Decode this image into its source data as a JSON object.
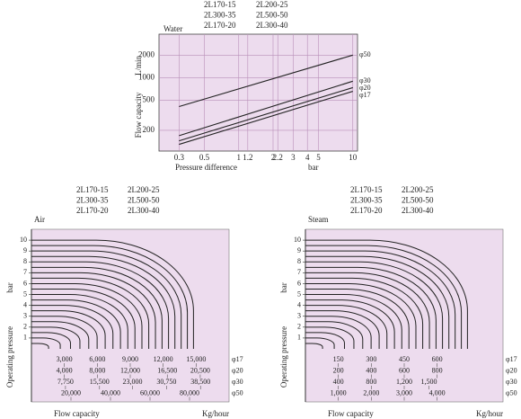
{
  "chart_data": [
    {
      "type": "line",
      "title": "Water",
      "models": [
        "2L170-15",
        "2L200-25",
        "2L300-35",
        "2L500-50",
        "2L170-20",
        "2L300-40"
      ],
      "x_label": "Pressure difference",
      "x_unit": "bar",
      "y_label": "Flow capacity",
      "y_unit": "L/min",
      "xlog": true,
      "ylog": true,
      "grid": true,
      "background": "#eddcee",
      "xlim": [
        0.2,
        11
      ],
      "ylim": [
        106,
        3800
      ],
      "xticks": [
        0.3,
        0.5,
        1,
        1.2,
        2,
        2.2,
        3,
        4,
        5,
        10
      ],
      "yticks": [
        200,
        500,
        1000,
        2000
      ],
      "series": [
        {
          "name": "φ50",
          "color": "#222222",
          "x": [
            0.3,
            10
          ],
          "values": [
            414,
            2000
          ]
        },
        {
          "name": "φ30",
          "color": "#222222",
          "x": [
            0.3,
            10
          ],
          "values": [
            170,
            900
          ]
        },
        {
          "name": "φ20",
          "color": "#222222",
          "x": [
            0.3,
            10
          ],
          "values": [
            145,
            740
          ]
        },
        {
          "name": "φ17",
          "color": "#222222",
          "x": [
            0.3,
            10
          ],
          "values": [
            130,
            660
          ]
        }
      ]
    },
    {
      "type": "pressure-curves",
      "title": "Air",
      "models": [
        "2L170-15",
        "2L200-25",
        "2L300-35",
        "2L500-50",
        "2L170-20",
        "2L300-40"
      ],
      "x_label": "Flow capacity",
      "x_unit": "Kg/hour",
      "y_label": "Operating pressure",
      "y_unit": "bar",
      "background": "#eddcee",
      "color": "#222222",
      "ylim": [
        0,
        11
      ],
      "yticks": [
        1,
        2,
        3,
        4,
        5,
        6,
        7,
        8,
        9,
        10
      ],
      "curves": [
        0.5,
        1,
        1.5,
        2,
        2.5,
        3,
        3.5,
        4,
        4.5,
        5,
        5.5,
        6,
        6.5,
        7,
        7.5,
        8,
        8.5,
        9,
        9.5,
        10
      ],
      "scales": [
        {
          "name": "φ17",
          "xlim": [
            0,
            18000
          ],
          "ticks": [
            {
              "value": 3000,
              "label": "3,000"
            },
            {
              "value": 6000,
              "label": "6,000"
            },
            {
              "value": 9000,
              "label": "9,000"
            },
            {
              "value": 12000,
              "label": "12,000"
            },
            {
              "value": 15000,
              "label": "15,000"
            }
          ]
        },
        {
          "name": "φ20",
          "xlim": [
            0,
            24000
          ],
          "ticks": [
            {
              "value": 4000,
              "label": "4,000"
            },
            {
              "value": 8000,
              "label": "8,000"
            },
            {
              "value": 12000,
              "label": "12,000"
            },
            {
              "value": 16500,
              "label": "16,500"
            },
            {
              "value": 20500,
              "label": "20,500"
            }
          ]
        },
        {
          "name": "φ30",
          "xlim": [
            0,
            45000
          ],
          "ticks": [
            {
              "value": 7750,
              "label": "7,750"
            },
            {
              "value": 15500,
              "label": "15,500"
            },
            {
              "value": 23000,
              "label": "23,000"
            },
            {
              "value": 30750,
              "label": "30,750"
            },
            {
              "value": 38500,
              "label": "38,500"
            }
          ]
        },
        {
          "name": "φ50",
          "xlim": [
            0,
            100000
          ],
          "ticks": [
            {
              "value": 20000,
              "label": "20,000"
            },
            {
              "value": 40000,
              "label": "40,000"
            },
            {
              "value": 60000,
              "label": "60,000"
            },
            {
              "value": 80000,
              "label": "80,000"
            }
          ]
        }
      ]
    },
    {
      "type": "pressure-curves",
      "title": "Steam",
      "models": [
        "2L170-15",
        "2L200-25",
        "2L300-35",
        "2L500-50",
        "2L170-20",
        "2L300-40"
      ],
      "x_label": "Flow capacity",
      "x_unit": "Kg/hour",
      "y_label": "Operating pressure",
      "y_unit": "bar",
      "background": "#eddcee",
      "color": "#222222",
      "ylim": [
        0,
        11
      ],
      "yticks": [
        1,
        2,
        3,
        4,
        5,
        6,
        7,
        8,
        9,
        10
      ],
      "curves": [
        0.5,
        1,
        1.5,
        2,
        2.5,
        3,
        3.5,
        4,
        4.5,
        5,
        5.5,
        6,
        6.5,
        7,
        7.5,
        8,
        8.5,
        9,
        9.5,
        10
      ],
      "scales": [
        {
          "name": "φ17",
          "xlim": [
            0,
            900
          ],
          "ticks": [
            150,
            300,
            450,
            600
          ]
        },
        {
          "name": "φ20",
          "xlim": [
            0,
            1200
          ],
          "ticks": [
            200,
            400,
            600,
            800
          ]
        },
        {
          "name": "φ30",
          "xlim": [
            0,
            2400
          ],
          "ticks": [
            400,
            800,
            {
              "value": 1200,
              "label": "1,200"
            },
            {
              "value": 1500,
              "label": "1,500"
            }
          ]
        },
        {
          "name": "φ50",
          "xlim": [
            0,
            6000
          ],
          "ticks": [
            {
              "value": 1000,
              "label": "1,000"
            },
            {
              "value": 2000,
              "label": "2,000"
            },
            {
              "value": 3000,
              "label": "3,000"
            },
            {
              "value": 4000,
              "label": "4,000"
            }
          ]
        }
      ]
    }
  ]
}
